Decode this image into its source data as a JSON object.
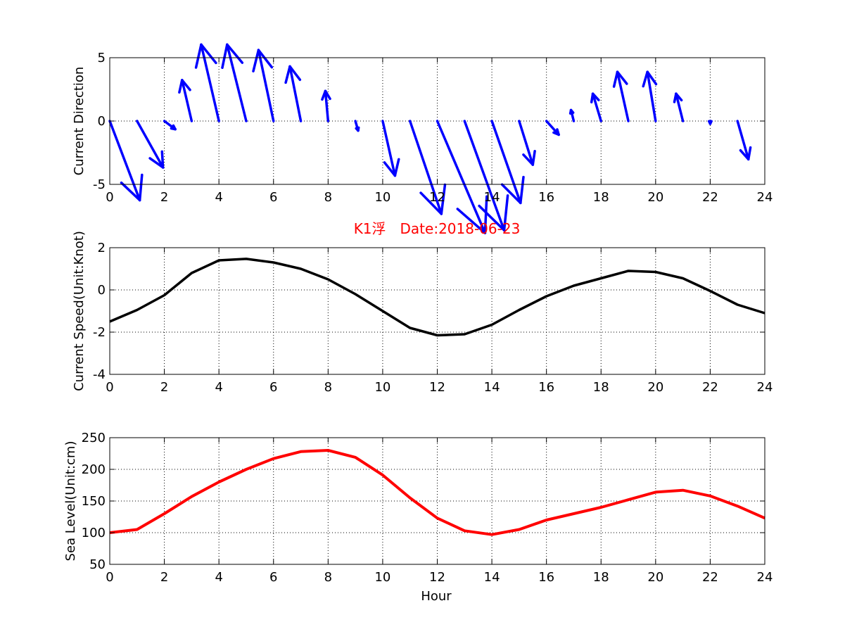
{
  "title": "K1浮　Date:2018-06-23",
  "xlabel": "Hour",
  "colors": {
    "direction": "#0000ff",
    "speed": "#000000",
    "sea_level": "#ff0000",
    "title": "#ff0000"
  },
  "chart_data": [
    {
      "type": "quiver",
      "ylabel": "Current Direction",
      "xlim": [
        0,
        24
      ],
      "ylim": [
        -5,
        5
      ],
      "xticks": [
        0,
        2,
        4,
        6,
        8,
        10,
        12,
        14,
        16,
        18,
        20,
        22,
        24
      ],
      "yticks": [
        -5,
        0,
        5
      ],
      "grid": true,
      "x": [
        0,
        1,
        2,
        3,
        4,
        5,
        6,
        7,
        8,
        9,
        10,
        11,
        12,
        13,
        14,
        15,
        16,
        17,
        18,
        19,
        20,
        21,
        22,
        23
      ],
      "u": [
        1.1,
        0.95,
        0.4,
        -0.35,
        -0.65,
        -0.7,
        -0.55,
        -0.4,
        -0.1,
        0.1,
        0.45,
        1.15,
        1.75,
        1.45,
        1.05,
        0.5,
        0.45,
        -0.1,
        -0.3,
        -0.4,
        -0.3,
        -0.25,
        0.0,
        0.4
      ],
      "v": [
        -2.9,
        -1.7,
        -0.3,
        1.5,
        2.8,
        2.8,
        2.6,
        2.0,
        1.1,
        -0.35,
        -2.0,
        -3.4,
        -4.1,
        -4.0,
        -3.0,
        -1.6,
        -0.5,
        0.4,
        1.0,
        1.8,
        1.8,
        1.0,
        -0.1,
        -1.4
      ]
    },
    {
      "type": "line",
      "ylabel": "Current Speed(Unit:Knot)",
      "xlim": [
        0,
        24
      ],
      "ylim": [
        -4,
        2
      ],
      "xticks": [
        0,
        2,
        4,
        6,
        8,
        10,
        12,
        14,
        16,
        18,
        20,
        22,
        24
      ],
      "yticks": [
        -4,
        -2,
        0,
        2
      ],
      "grid": true,
      "x": [
        0,
        1,
        2,
        3,
        4,
        5,
        6,
        7,
        8,
        9,
        10,
        11,
        12,
        13,
        14,
        15,
        16,
        17,
        18,
        19,
        20,
        21,
        22,
        23,
        24
      ],
      "y": [
        -1.5,
        -0.95,
        -0.25,
        0.8,
        1.4,
        1.47,
        1.3,
        1.0,
        0.5,
        -0.2,
        -1.0,
        -1.8,
        -2.15,
        -2.1,
        -1.65,
        -0.95,
        -0.3,
        0.2,
        0.55,
        0.9,
        0.85,
        0.55,
        -0.05,
        -0.7,
        -1.1
      ]
    },
    {
      "type": "line",
      "ylabel": "Sea Level(Unit:cm)",
      "xlim": [
        0,
        24
      ],
      "ylim": [
        50,
        250
      ],
      "xticks": [
        0,
        2,
        4,
        6,
        8,
        10,
        12,
        14,
        16,
        18,
        20,
        22,
        24
      ],
      "yticks": [
        50,
        100,
        150,
        200,
        250
      ],
      "grid": true,
      "x": [
        0,
        1,
        2,
        3,
        4,
        5,
        6,
        7,
        8,
        9,
        10,
        11,
        12,
        13,
        14,
        15,
        16,
        17,
        18,
        19,
        20,
        21,
        22,
        23,
        24
      ],
      "y": [
        100,
        105,
        130,
        157,
        180,
        200,
        217,
        228,
        230,
        219,
        191,
        155,
        123,
        103,
        97,
        105,
        120,
        130,
        140,
        152,
        164,
        167,
        158,
        142,
        123
      ]
    }
  ]
}
